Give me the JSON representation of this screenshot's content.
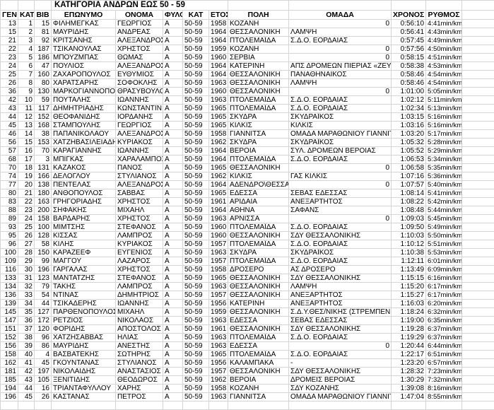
{
  "title": "ΚΑΤΗΓΟΡΙΑ ΑΝΔΡΩΝ ΕΩΣ 50 -  59",
  "headers": [
    "ΓΕΝ",
    "ΚΑΤΗΓ",
    "ΒΙΒ",
    "ΕΠΩΝΥΜΟ",
    "ΟΝΟΜΑ",
    "ΦΥΛΟ",
    "ΚΑΤ",
    "ΕΤΟΣ",
    "ΠΟΛΗ",
    "ΟΜΑΔΑ",
    "ΧΡΟΝΟΣ",
    "ΡΥΘΜΟΣ"
  ],
  "rows": [
    [
      "13",
      "1",
      "15",
      "ΦΙΛΗΜΕΓΚΑΣ",
      "ΓΕΩΡΓΙΟΣ",
      "Α",
      "50-59",
      "1958",
      "ΚΟΖΑΝΗ",
      "0",
      "0:56:10",
      "4:41min/km"
    ],
    [
      "15",
      "2",
      "81",
      "ΜΑΥΡΙΔΗΣ",
      "ΑΝΔΡΕΑΣ",
      "Α",
      "50-59",
      "1964",
      "ΘΕΣΣΑΛΟΝΙΚΗ",
      "ΛΑΜΨΗ",
      "0:56:41",
      "4:43min/km"
    ],
    [
      "21",
      "3",
      "92",
      "ΚΡΙΤΣΑΝΗΣ",
      "ΑΛΕΞΑΝΔΡΟΣ",
      "Α",
      "50-59",
      "1964",
      "ΠΤΟΛΕΜΑΪΔΑ",
      "Σ.Δ.Ο. ΕΟΡΔΑΙΑΣ",
      "0:57:45",
      "4:49min/km"
    ],
    [
      "22",
      "4",
      "187",
      "ΤΣΙΚΑΝΟΥΛΑΣ",
      "ΧΡΗΣΤΟΣ",
      "Α",
      "50-59",
      "1959",
      "ΚΟΖΑΝΗ",
      "0",
      "0:57:56",
      "4:50min/km"
    ],
    [
      "23",
      "5",
      "186",
      "ΜΠΟΥΖΜΠΑΣ",
      "ΘΩΜΑΣ",
      "Α",
      "50-59",
      "1960",
      "ΣΕΡΒΙΑ",
      "0",
      "0:58:15",
      "4:51min/km"
    ],
    [
      "24",
      "6",
      "47",
      "ΠΟΥΛΙΟΣ",
      "ΑΛΕΞΑΝΔΡΟΣ",
      "Α",
      "50-59",
      "1964",
      "ΚΑΤΕΡΙΝΗ",
      "ΑΠΣ ΔΡΟΜΕΩΝ ΠΙΕΡΙΑΣ «ΖΕΥΣ",
      "0:58:38",
      "4:53min/km"
    ],
    [
      "25",
      "7",
      "160",
      "ΖΑΧΑΡΟΠΟΥΛΟΣ",
      "ΕΥΘΥΜΙΟΣ",
      "Α",
      "50-59",
      "1964",
      "ΘΕΣΣΑΛΟΝΙΚΗ",
      "ΠΑΝΑΘΗΝΑΙΚΟΣ",
      "0:58:46",
      "4:54min/km"
    ],
    [
      "26",
      "8",
      "80",
      "ΧΑΡΑΤΣΑΡΗΣ",
      "ΣΟΦΟΚΛΗΣ",
      "Α",
      "50-59",
      "1963",
      "ΘΕΣΣΑΛΟΝΙΚΗ",
      "ΛΑΜΨΗ",
      "0:58:46",
      "4:54min/km"
    ],
    [
      "36",
      "9",
      "130",
      "ΜΑΡΚΟΓΙΑΝΝΟΠΟΥ",
      "ΘΡΑΣΥΒΟΥΛΟ",
      "Α",
      "50-59",
      "1960",
      "ΘΕΣΣΑΛΟΝΙΚΗ",
      "0",
      "1:01:00",
      "5:05min/km"
    ],
    [
      "42",
      "10",
      "59",
      "ΠΟΥΤΑΛΗΣ",
      "ΙΩΑΝΝΗΣ",
      "Α",
      "50-59",
      "1963",
      "ΠΤΟΛΕΜΑΪΔΑ",
      "Σ.Δ.Ο. ΕΟΡΔΑΙΑΣ",
      "1:02:12",
      "5:11min/km"
    ],
    [
      "43",
      "11",
      "117",
      "ΔΗΜΗΤΡΙΑΔΗΣ",
      "ΚΩΝΣΤΑΝΤΙΝ",
      "Α",
      "50-59",
      "1965",
      "ΠΤΟΛΕΜΑΪΔΑ",
      "Σ.Δ.Ο. ΕΟΡΔΑΙΑΣ",
      "1:02:34",
      "5:13min/km"
    ],
    [
      "44",
      "12",
      "152",
      "ΘΕΟΦΑΝΙΔΗΣ",
      "ΙΟΡΔΑΝΗΣ",
      "Α",
      "50-59",
      "1965",
      "ΣΚΥΔΡΑ",
      "ΣΚΥΔΡΑΪΚΟΣ",
      "1:03:15",
      "5:16min/km"
    ],
    [
      "45",
      "13",
      "168",
      "ΣΤΑΜΠΟΥΛΗΣ",
      "ΓΕΩΡΓΙΟΣ",
      "Α",
      "50-59",
      "1965",
      "ΚΙΛΚΙΣ",
      "ΚΙΛΚΙΣ",
      "1:03:16",
      "5:16min/km"
    ],
    [
      "46",
      "14",
      "38",
      "ΠΑΠΑΝΙΚΟΛΑΟΥ",
      "ΑΛΕΞΑΝΔΡΟΣ",
      "Α",
      "50-59",
      "1958",
      "ΓΙΑΝΝΙΤΣΑ",
      "ΟΜΑΔΑ ΜΑΡΑΘΩΝΙΟΥ ΓΙΑΝΝΙΤΣ",
      "1:03:20",
      "5:17min/km"
    ],
    [
      "56",
      "15",
      "153",
      "ΧΑΤΖΗΒΑΣΙΛΕΙΑΔΗΣ",
      "ΚΥΡΙΑΚΟΣ",
      "Α",
      "50-59",
      "1962",
      "ΣΚΥΔΡΑ",
      "ΣΚΥΔΡΑΪΚΟΣ",
      "1:05:32",
      "5:28min/km"
    ],
    [
      "57",
      "16",
      "70",
      "ΚΑΡΑΓΙΑΝΝΗΣ",
      "ΙΩΑΝΝΗΣ",
      "Α",
      "50-59",
      "1964",
      "ΒΕΡΟΙΑ",
      "ΣΥΛ. ΔΡΟΜΕΩΝ ΒΕΡΟΙΑΣ",
      "1:05:52",
      "5:29min/km"
    ],
    [
      "68",
      "17",
      "3",
      "ΜΠΙΓΚΑΣ",
      "ΧΑΡΑΛΑΜΠΟΣ",
      "Α",
      "50-59",
      "1964",
      "ΠΤΟΛΕΜΑΪΔΑ",
      "Σ.Δ.Ο. ΕΟΡΔΑΙΑΣ",
      "1:06:53",
      "5:34min/km"
    ],
    [
      "70",
      "18",
      "131",
      "ΚΑΖΑΚΟΣ",
      "ΠΑΝΟΣ",
      "Α",
      "50-59",
      "1965",
      "ΘΕΣΣΑΛΟΝΙΚΗ",
      "0",
      "1:06:58",
      "5:35min/km"
    ],
    [
      "74",
      "19",
      "166",
      "ΔΕΛΟΓΛΟΥ",
      "ΣΤΥΛΙΑΝΟΣ",
      "Α",
      "50-59",
      "1962",
      "ΚΙΛΚΙΣ",
      "ΓΑΣ ΚΙΛΚΙΣ",
      "1:07:16",
      "5:36min/km"
    ],
    [
      "77",
      "20",
      "138",
      "ΠΕΝΤΕΛΑΣ",
      "ΑΛΕΞΑΝΔΡΟΣ",
      "Α",
      "50-59",
      "1964",
      "ΑΔΕΝΔΡΟ\\ΘΕΣΣΑΛ",
      "0",
      "1:07:57",
      "5:40min/km"
    ],
    [
      "80",
      "21",
      "180",
      "ΑΝΘΟΠΟΥΛΟΣ",
      "ΣΑΒΒΑΣ",
      "Α",
      "50-59",
      "1965",
      "ΕΔΕΣΣΑ",
      "ΣΕΒΑΣ ΕΔΕΣΣΑΣ",
      "1:08:14",
      "5:41min/km"
    ],
    [
      "83",
      "22",
      "163",
      "ΓΡΗΓΟΡΙΑΔΗΣ",
      "ΧΡΗΣΤΟΣ",
      "Α",
      "50-59",
      "1961",
      "ΑΡΙΔΑΙΑ",
      "ΑΝΕΞΑΡΤΗΤΟΣ",
      "1:08:22",
      "5:42min/km"
    ],
    [
      "88",
      "23",
      "200",
      "ΣΗΦΑΚΗΣ",
      "ΜΙΧΑΗΛ",
      "Α",
      "50-59",
      "1964",
      "ΑΘΗΝΑ",
      "ΣΑΦΑΝΣ",
      "1:08:48",
      "5:44min/km"
    ],
    [
      "89",
      "24",
      "158",
      "ΒΑΡΔΑΡΗΣ",
      "ΧΡΗΣΤΟΣ",
      "Α",
      "50-59",
      "1963",
      "ΑΡΝΙΣΣΑ",
      "0",
      "1:09:03",
      "5:45min/km"
    ],
    [
      "93",
      "25",
      "100",
      "ΜΙΜΤΣΗΣ",
      "ΣΤΕΦΑΝΟΣ",
      "Α",
      "50-59",
      "1960",
      "ΠΤΟΛΕΜΑΪΔΑ",
      "Σ.Δ.Ο. ΕΟΡΔΑΙΑΣ",
      "1:09:50",
      "5:49min/km"
    ],
    [
      "95",
      "26",
      "128",
      "ΚΙΣΣΑΣ",
      "ΛΑΜΠΡΟΣ",
      "Α",
      "50-59",
      "1960",
      "ΘΕΣΣΑΛΟΝΙΚΗ",
      "ΣΔΥ ΘΕΣΣΑΛΟΝΙΚΗΣ",
      "1:10:03",
      "5:50min/km"
    ],
    [
      "96",
      "27",
      "58",
      "ΚΙΛΗΣ",
      "ΚΥΡΙΑΚΟΣ",
      "Α",
      "50-59",
      "1957",
      "ΠΤΟΛΕΜΑΪΔΑ",
      "Σ.Δ.Ο. ΕΟΡΔΑΙΑΣ",
      "1:10:12",
      "5:51min/km"
    ],
    [
      "100",
      "28",
      "150",
      "ΚΑΡΑΖΕΕΦ",
      "ΕΥΓΕΝΙΟΣ",
      "Α",
      "50-59",
      "1963",
      "ΣΚΥΔΡΑ",
      "ΣΚΥΔΡΑΪΚΟΣ",
      "1:10:38",
      "5:53min/km"
    ],
    [
      "109",
      "29",
      "99",
      "ΜΑΓΓΟΥ",
      "ΛΑΖΑΡΟΣ",
      "Α",
      "50-59",
      "1957",
      "ΠΤΟΛΕΜΑΪΔΑ",
      "Σ.Δ.Ο. ΕΟΡΔΑΙΑΣ",
      "1:12:11",
      "6:01min/km"
    ],
    [
      "116",
      "30",
      "196",
      "ΓΑΡΓΑΛΑΣ",
      "ΧΡΗΣΤΟΣ",
      "Α",
      "50-59",
      "1958",
      "ΔΡΟΣΕΡΟ",
      "ΑΣ ΔΡΟΣΕΡΟ",
      "1:13:49",
      "6:09min/km"
    ],
    [
      "133",
      "31",
      "123",
      "ΜΑΝΤΑΤΖΗΣ",
      "ΣΤΕΦΑΝΟΣ",
      "Α",
      "50-59",
      "1965",
      "ΘΕΣΣΑΛΟΝΙΚΗ",
      "ΣΔΥ ΘΕΣΣΑΛΟΝΙΚΗΣ",
      "1:15:15",
      "6:16min/km"
    ],
    [
      "134",
      "32",
      "79",
      "ΤΑΚΗΣ",
      "ΛΑΜΠΡΟΣ",
      "Α",
      "50-59",
      "1963",
      "ΘΕΣΣΑΛΟΝΙΚΗ",
      "ΛΑΜΨΗ",
      "1:15:20",
      "6:17min/km"
    ],
    [
      "136",
      "33",
      "54",
      "ΝΤΙΝΑΣ",
      "ΔΗΜΗΤΡΙΟΣ",
      "Α",
      "50-59",
      "1957",
      "ΘΕΣΣΑΛΟΝΙΚΗ",
      "ΑΝΕΞΑΡΤΗΤΟΣ",
      "1:15:27",
      "6:17min/km"
    ],
    [
      "139",
      "34",
      "44",
      "ΤΣΙΚΑΔΕΡΗΣ",
      "ΙΩΑΝΝΗΣ",
      "Α",
      "50-59",
      "1956",
      "ΚΑΤΕΡΙΝΗ",
      "ΑΝΕΞΑΡΤΗΤΟΣ",
      "1:16:03",
      "6:20min/km"
    ],
    [
      "145",
      "35",
      "127",
      "ΠΑΡΘΕΝΟΠΟΥΛΟΣ",
      "ΜΙΧΑΗΛ",
      "Α",
      "50-59",
      "1959",
      "ΘΕΣΣΑΛΟΝΙΚΗ",
      "Σ.Δ.Υ.ΘΕΣ/ΝΙΚΗΣ (ΣΤΡΕΜΠΕΝΙΣ",
      "1:18:24",
      "6:32min/km"
    ],
    [
      "147",
      "36",
      "172",
      "ΡΕΤΖΙΟΣ",
      "ΝΙΚΟΛΑΟΣ",
      "Α",
      "50-59",
      "1963",
      "ΕΔΕΣΣΑ",
      "ΣΕΒΑΣ ΕΔΕΣΣΑΣ",
      "1:19:00",
      "6:35min/km"
    ],
    [
      "151",
      "37",
      "120",
      "ΦΟΡΙΔΗΣ",
      "ΑΠΟΣΤΟΛΟΣ",
      "Α",
      "50-59",
      "1961",
      "ΘΕΣΣΑΛΟΝΙΚΗ",
      "ΣΔΥ ΘΕΣΣΑΛΟΝΙΚΗΣ",
      "1:19:28",
      "6:37min/km"
    ],
    [
      "152",
      "38",
      "96",
      "ΧΑΤΖΗΣΑΒΒΑΣ",
      "ΗΛΙΑΣ",
      "Α",
      "50-59",
      "1963",
      "ΠΤΟΛΕΜΑΪΔΑ",
      "Σ.Δ.Ο. ΕΟΡΔΑΙΑΣ",
      "1:19:29",
      "6:37min/km"
    ],
    [
      "156",
      "39",
      "86",
      "ΜΑΥΡΙΔΗΣ",
      "ΑΝΕΣΤΗΣ",
      "Α",
      "50-59",
      "1963",
      "ΕΔΕΣΣΑ",
      "0",
      "1:20:44",
      "6:44min/km"
    ],
    [
      "158",
      "40",
      "4",
      "ΒΑΣΒΑΤΕΚΗΣ",
      "ΣΩΤΗΡΗΣ",
      "Α",
      "50-59",
      "1965",
      "ΠΤΟΛΕΜΑΪΔΑ",
      "Σ.Δ.Ο. ΕΟΡΔΑΙΑΣ",
      "1:22:17",
      "6:51min/km"
    ],
    [
      "162",
      "41",
      "45",
      "ΓΚΟΥΝΤΑΝΑΣ",
      "ΣΤΥΛΙΑΝΟΣ",
      "Α",
      "50-59",
      "1956",
      "ΚΑΛΑΜΠΑΚΑ",
      "-",
      "1:23:20",
      "6:57min/km"
    ],
    [
      "181",
      "42",
      "197",
      "ΝΙΚΟΛΑΙΔΗΣ",
      "ΑΝΑΣΤΑΣΙΟΣ",
      "Α",
      "50-59",
      "1957",
      "ΘΕΣΣΑΛΟΝΙΚΗ",
      "ΣΔΥ ΘΕΣΣΑΛΟΝΙΚΗΣ",
      "1:28:32",
      "7:23min/km"
    ],
    [
      "185",
      "43",
      "105",
      "ΞΕΝΙΤΙΔΗΣ",
      "ΘΕΟΔΩΡΟΣ",
      "Α",
      "50-59",
      "1962",
      "ΒΕΡΟΙΑ",
      "ΔΡΟΜΕΙΣ ΒΕΡΟΙΑΣ",
      "1:30:29",
      "7:32min/km"
    ],
    [
      "194",
      "44",
      "16",
      "ΤΡΙΑΝΤΑΦΥΛΛΟΥ",
      "ΧΑΡΗΣ",
      "Α",
      "50-59",
      "1958",
      "ΚΟΖΑΝΗ",
      "ΣΔΥ ΚΟΖΑΝΗΣ",
      "1:39:08",
      "8:16min/km"
    ],
    [
      "196",
      "45",
      "26",
      "ΚΑΣΤΑΝΑΣ",
      "ΠΕΤΡΟΣ",
      "Α",
      "50-59",
      "1963",
      "ΓΙΑΝΝΙΤΣΑ",
      "ΟΜΑΔΑ ΜΑΡΑΘΩΝΙΟΥ ΓΙΑΝΝΙΤΣ",
      "1:47:04",
      "8:55min/km"
    ]
  ]
}
